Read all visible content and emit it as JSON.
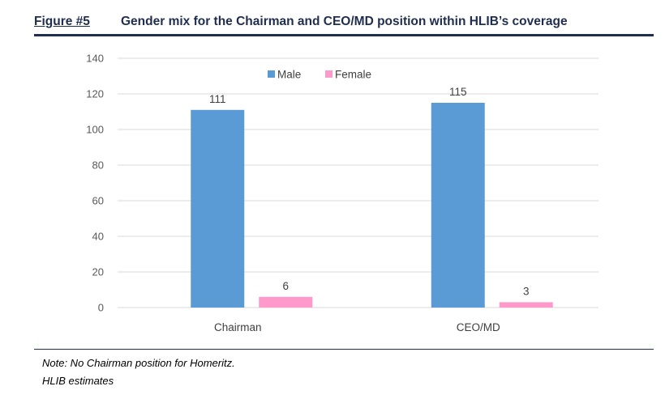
{
  "figure": {
    "number": "Figure #5",
    "title": "Gender mix for the Chairman and CEO/MD position within HLIB’s coverage"
  },
  "chart_data": {
    "type": "bar",
    "categories": [
      "Chairman",
      "CEO/MD"
    ],
    "series": [
      {
        "name": "Male",
        "values": [
          111,
          115
        ],
        "labels": [
          "111",
          "115"
        ],
        "color": "#5b9bd5"
      },
      {
        "name": "Female",
        "values": [
          6,
          3
        ],
        "labels": [
          "6",
          "3"
        ],
        "color": "#ff99cc"
      }
    ],
    "ylim": [
      0,
      140
    ],
    "yticks": [
      0,
      20,
      40,
      60,
      80,
      100,
      120,
      140
    ],
    "grid": true,
    "legend_position": "top-center"
  },
  "footer": {
    "note": "Note: No Chairman position for Homeritz.",
    "source": "HLIB estimates"
  }
}
